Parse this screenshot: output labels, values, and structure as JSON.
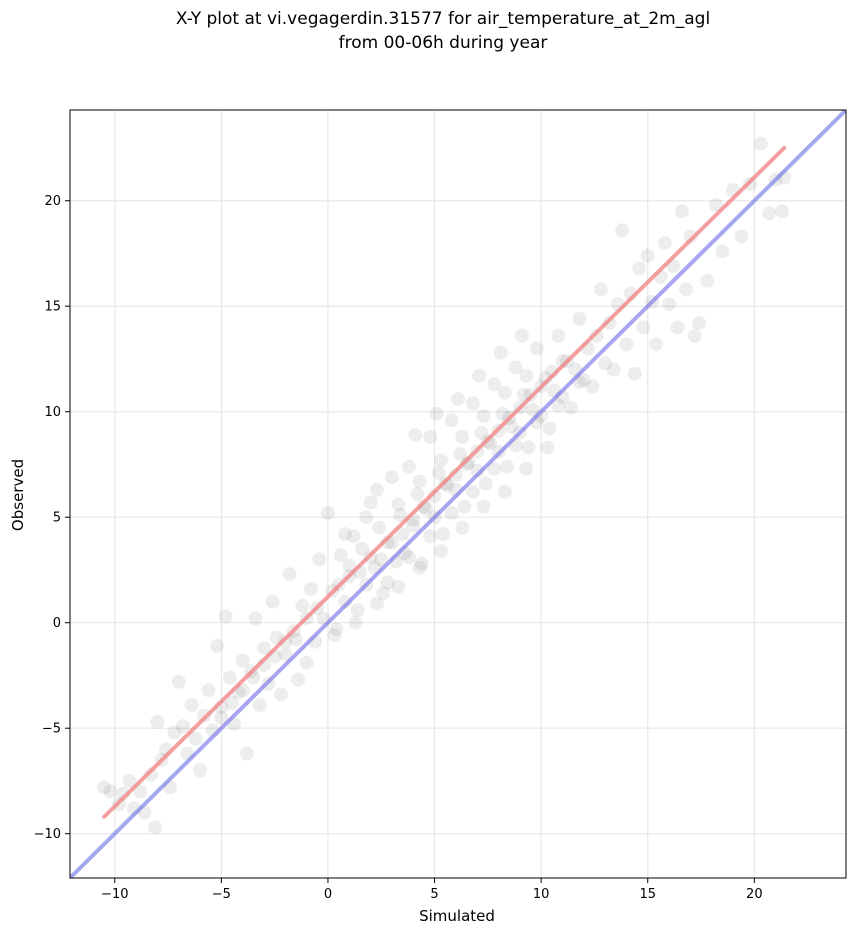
{
  "chart_data": {
    "type": "scatter",
    "title_lines": [
      "X-Y plot at vi.vegagerdin.31577 for air_temperature_at_2m_agl",
      "from 00-06h during year"
    ],
    "xlabel": "Simulated",
    "ylabel": "Observed",
    "xlim": [
      -12.1,
      24.3
    ],
    "ylim": [
      -12.1,
      24.3
    ],
    "xticks": [
      -10,
      -5,
      0,
      5,
      10,
      15,
      20
    ],
    "yticks": [
      -10,
      -5,
      0,
      5,
      10,
      15,
      20
    ],
    "x_tick_labels": [
      "−10",
      "−5",
      "0",
      "5",
      "10",
      "15",
      "20"
    ],
    "y_tick_labels": [
      "−10",
      "−5",
      "0",
      "5",
      "10",
      "15",
      "20"
    ],
    "grid": true,
    "point_color": "#000000",
    "point_alpha": 0.07,
    "points": [
      [
        -10.5,
        -7.8
      ],
      [
        -10.2,
        -8.0
      ],
      [
        -9.8,
        -8.6
      ],
      [
        -9.6,
        -8.1
      ],
      [
        -9.3,
        -7.5
      ],
      [
        -9.1,
        -8.8
      ],
      [
        -8.8,
        -8.0
      ],
      [
        -8.6,
        -9.0
      ],
      [
        -8.3,
        -7.2
      ],
      [
        -8.1,
        -9.7
      ],
      [
        -8.0,
        -4.7
      ],
      [
        -7.8,
        -6.5
      ],
      [
        -7.6,
        -6.0
      ],
      [
        -7.4,
        -7.8
      ],
      [
        -7.2,
        -5.2
      ],
      [
        -7.0,
        -2.8
      ],
      [
        -6.8,
        -4.9
      ],
      [
        -6.6,
        -6.2
      ],
      [
        -6.4,
        -3.9
      ],
      [
        -6.2,
        -5.5
      ],
      [
        -6.0,
        -7.0
      ],
      [
        -5.8,
        -4.4
      ],
      [
        -5.6,
        -3.2
      ],
      [
        -5.4,
        -5.1
      ],
      [
        -5.2,
        -1.1
      ],
      [
        -5.0,
        -4.0
      ],
      [
        -4.8,
        0.3
      ],
      [
        -4.6,
        -2.6
      ],
      [
        -4.4,
        -4.8
      ],
      [
        -4.2,
        -3.3
      ],
      [
        -4.0,
        -1.8
      ],
      [
        -3.8,
        -6.2
      ],
      [
        -3.6,
        -2.3
      ],
      [
        -3.4,
        0.2
      ],
      [
        -3.2,
        -3.9
      ],
      [
        -3.0,
        -1.2
      ],
      [
        -2.8,
        -2.9
      ],
      [
        -2.6,
        1.0
      ],
      [
        -2.4,
        -0.7
      ],
      [
        -2.2,
        -3.4
      ],
      [
        -2.0,
        -1.5
      ],
      [
        -1.8,
        2.3
      ],
      [
        -1.6,
        -0.4
      ],
      [
        -1.4,
        -2.7
      ],
      [
        -1.2,
        0.8
      ],
      [
        -1.0,
        -1.9
      ],
      [
        -0.8,
        1.6
      ],
      [
        -0.6,
        -0.9
      ],
      [
        -0.4,
        3.0
      ],
      [
        -0.2,
        0.2
      ],
      [
        0.0,
        5.2
      ],
      [
        0.2,
        1.5
      ],
      [
        0.4,
        -0.3
      ],
      [
        0.6,
        3.2
      ],
      [
        0.8,
        1.0
      ],
      [
        1.0,
        2.2
      ],
      [
        1.2,
        4.1
      ],
      [
        1.4,
        0.6
      ],
      [
        1.6,
        3.5
      ],
      [
        1.8,
        1.8
      ],
      [
        2.0,
        5.7
      ],
      [
        2.2,
        2.6
      ],
      [
        2.4,
        4.5
      ],
      [
        2.6,
        1.4
      ],
      [
        2.8,
        3.8
      ],
      [
        3.0,
        6.9
      ],
      [
        3.2,
        2.9
      ],
      [
        3.4,
        5.1
      ],
      [
        3.6,
        3.3
      ],
      [
        3.8,
        7.4
      ],
      [
        4.0,
        4.6
      ],
      [
        4.2,
        6.1
      ],
      [
        4.4,
        2.8
      ],
      [
        4.6,
        5.4
      ],
      [
        4.8,
        8.8
      ],
      [
        5.0,
        5.0
      ],
      [
        5.2,
        7.1
      ],
      [
        5.4,
        4.2
      ],
      [
        5.6,
        6.5
      ],
      [
        5.8,
        9.6
      ],
      [
        6.0,
        6.3
      ],
      [
        6.2,
        8.0
      ],
      [
        6.4,
        5.5
      ],
      [
        6.6,
        7.6
      ],
      [
        6.8,
        10.4
      ],
      [
        7.0,
        7.2
      ],
      [
        7.2,
        9.0
      ],
      [
        7.4,
        6.6
      ],
      [
        7.6,
        8.5
      ],
      [
        7.8,
        11.3
      ],
      [
        8.0,
        8.1
      ],
      [
        8.2,
        9.9
      ],
      [
        8.4,
        7.4
      ],
      [
        8.6,
        9.3
      ],
      [
        8.8,
        12.1
      ],
      [
        9.0,
        9.0
      ],
      [
        9.2,
        10.8
      ],
      [
        9.4,
        8.3
      ],
      [
        9.6,
        10.1
      ],
      [
        9.8,
        13.0
      ],
      [
        10.0,
        9.8
      ],
      [
        10.2,
        11.6
      ],
      [
        10.4,
        9.2
      ],
      [
        10.6,
        11.0
      ],
      [
        10.8,
        13.6
      ],
      [
        11.0,
        10.7
      ],
      [
        11.2,
        12.4
      ],
      [
        11.4,
        10.2
      ],
      [
        11.6,
        12.0
      ],
      [
        11.8,
        14.4
      ],
      [
        12.0,
        11.5
      ],
      [
        12.2,
        13.0
      ],
      [
        12.4,
        11.2
      ],
      [
        12.6,
        13.6
      ],
      [
        12.8,
        15.8
      ],
      [
        13.0,
        12.3
      ],
      [
        13.2,
        14.2
      ],
      [
        13.4,
        12.0
      ],
      [
        13.6,
        15.1
      ],
      [
        13.8,
        18.6
      ],
      [
        14.0,
        13.2
      ],
      [
        14.2,
        15.6
      ],
      [
        14.4,
        11.8
      ],
      [
        14.6,
        16.8
      ],
      [
        14.8,
        14.0
      ],
      [
        15.0,
        17.4
      ],
      [
        15.2,
        15.2
      ],
      [
        15.4,
        13.2
      ],
      [
        15.6,
        16.4
      ],
      [
        15.8,
        18.0
      ],
      [
        16.0,
        15.1
      ],
      [
        16.2,
        16.9
      ],
      [
        16.4,
        14.0
      ],
      [
        16.6,
        19.5
      ],
      [
        16.8,
        15.8
      ],
      [
        17.0,
        18.3
      ],
      [
        17.2,
        13.6
      ],
      [
        17.4,
        14.2
      ],
      [
        17.8,
        16.2
      ],
      [
        18.2,
        19.8
      ],
      [
        18.5,
        17.6
      ],
      [
        19.0,
        20.5
      ],
      [
        19.4,
        18.3
      ],
      [
        19.8,
        20.8
      ],
      [
        20.3,
        22.7
      ],
      [
        20.7,
        19.4
      ],
      [
        21.0,
        21.0
      ],
      [
        21.3,
        19.5
      ],
      [
        21.4,
        21.1
      ],
      [
        2.5,
        3.0
      ],
      [
        3.0,
        3.8
      ],
      [
        3.5,
        4.2
      ],
      [
        4.0,
        4.9
      ],
      [
        4.5,
        5.5
      ],
      [
        5.0,
        6.0
      ],
      [
        5.5,
        6.6
      ],
      [
        6.0,
        7.0
      ],
      [
        6.5,
        7.5
      ],
      [
        7.0,
        8.1
      ],
      [
        7.5,
        8.6
      ],
      [
        8.0,
        9.1
      ],
      [
        8.5,
        9.7
      ],
      [
        9.0,
        10.2
      ],
      [
        9.5,
        10.8
      ],
      [
        10.0,
        11.2
      ],
      [
        10.5,
        11.9
      ],
      [
        11.0,
        12.4
      ],
      [
        1.5,
        2.4
      ],
      [
        2.0,
        3.1
      ],
      [
        0.5,
        1.8
      ],
      [
        1.0,
        2.7
      ],
      [
        -0.5,
        0.7
      ],
      [
        -1.0,
        0.2
      ],
      [
        -1.5,
        -0.8
      ],
      [
        -2.0,
        -0.9
      ],
      [
        -2.5,
        -1.6
      ],
      [
        -3.0,
        -2.0
      ],
      [
        -3.5,
        -2.6
      ],
      [
        -4.0,
        -3.2
      ],
      [
        -4.5,
        -3.8
      ],
      [
        -5.0,
        -4.5
      ],
      [
        3.3,
        5.6
      ],
      [
        4.3,
        6.7
      ],
      [
        5.3,
        7.7
      ],
      [
        6.3,
        8.8
      ],
      [
        7.3,
        9.8
      ],
      [
        8.3,
        10.9
      ],
      [
        9.3,
        11.7
      ],
      [
        2.8,
        1.9
      ],
      [
        3.8,
        3.1
      ],
      [
        4.8,
        4.1
      ],
      [
        5.8,
        5.2
      ],
      [
        6.8,
        6.2
      ],
      [
        7.8,
        7.3
      ],
      [
        8.8,
        8.4
      ],
      [
        9.8,
        9.5
      ],
      [
        10.8,
        10.3
      ],
      [
        11.8,
        11.4
      ],
      [
        0.8,
        4.2
      ],
      [
        1.8,
        5.0
      ],
      [
        2.3,
        6.3
      ],
      [
        4.1,
        8.9
      ],
      [
        5.1,
        9.9
      ],
      [
        6.1,
        10.6
      ],
      [
        7.1,
        11.7
      ],
      [
        8.1,
        12.8
      ],
      [
        9.1,
        13.6
      ],
      [
        0.3,
        -0.6
      ],
      [
        1.3,
        0.0
      ],
      [
        2.3,
        0.9
      ],
      [
        3.3,
        1.7
      ],
      [
        4.3,
        2.6
      ],
      [
        5.3,
        3.4
      ],
      [
        6.3,
        4.5
      ],
      [
        7.3,
        5.5
      ],
      [
        8.3,
        6.2
      ],
      [
        9.3,
        7.3
      ],
      [
        10.3,
        8.3
      ]
    ],
    "lines": [
      {
        "color": "#f08080",
        "opacity": 0.75,
        "x": [
          -10.5,
          21.4
        ],
        "y": [
          -9.2,
          22.5
        ]
      },
      {
        "color": "#6b6be8",
        "opacity": 0.6,
        "x": [
          -12.1,
          24.3
        ],
        "y": [
          -12.1,
          24.3
        ]
      }
    ]
  }
}
